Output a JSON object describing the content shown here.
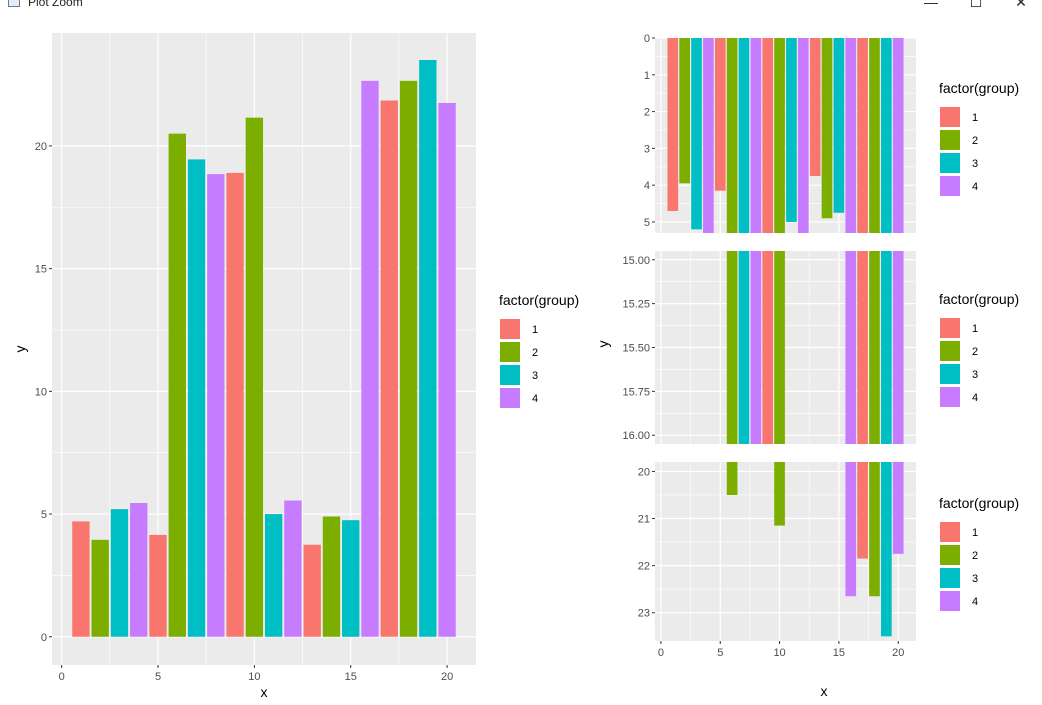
{
  "window": {
    "title": "Plot Zoom",
    "controls": [
      "minimize",
      "maximize",
      "close"
    ]
  },
  "palette": {
    "1": "#F8766D",
    "2": "#7CAE00",
    "3": "#00BFC4",
    "4": "#C77CFF"
  },
  "legend": {
    "title": "factor(group)",
    "entries": [
      "1",
      "2",
      "3",
      "4"
    ]
  },
  "chart_data": [
    {
      "type": "bar",
      "panel": "main",
      "title": "",
      "xlabel": "x",
      "ylabel": "y",
      "x": [
        1,
        2,
        3,
        4,
        5,
        6,
        7,
        8,
        9,
        10,
        11,
        12,
        13,
        14,
        15,
        16,
        17,
        18,
        19,
        20
      ],
      "values": [
        4.7,
        3.95,
        5.2,
        5.45,
        4.15,
        20.5,
        19.45,
        18.85,
        18.9,
        21.15,
        5.0,
        5.55,
        3.75,
        4.9,
        4.75,
        22.65,
        21.85,
        22.65,
        23.5,
        21.75
      ],
      "group": [
        1,
        2,
        3,
        4,
        1,
        2,
        3,
        4,
        1,
        2,
        3,
        4,
        1,
        2,
        3,
        4,
        1,
        2,
        3,
        4
      ],
      "xlim": [
        -0.5,
        21.5
      ],
      "ylim": [
        -1.15,
        24.6
      ],
      "xticks": [
        0,
        5,
        10,
        15,
        20
      ],
      "yticks": [
        0,
        5,
        10,
        15,
        20
      ],
      "yticklabels": [
        "0",
        "5",
        "10",
        "15",
        "20"
      ],
      "grid": true
    },
    {
      "type": "bar",
      "panel": "facet-top",
      "reversed_y": true,
      "ylim": [
        0,
        5.3
      ],
      "yticks": [
        0,
        1,
        2,
        3,
        4,
        5
      ],
      "yticklabels": [
        "0",
        "1",
        "2",
        "3",
        "4",
        "5"
      ]
    },
    {
      "type": "bar",
      "panel": "facet-middle",
      "reversed_y": true,
      "ylim": [
        14.95,
        16.05
      ],
      "yticks": [
        15,
        15.25,
        15.5,
        15.75,
        16
      ],
      "yticklabels": [
        "15.00",
        "15.25",
        "15.50",
        "15.75",
        "16.00"
      ],
      "ylabel": "y"
    },
    {
      "type": "bar",
      "panel": "facet-bottom",
      "reversed_y": true,
      "ylim": [
        19.8,
        23.6
      ],
      "yticks": [
        20,
        21,
        22,
        23
      ],
      "yticklabels": [
        "20",
        "21",
        "22",
        "23"
      ],
      "xlabel": "x",
      "xticks": [
        0,
        5,
        10,
        15,
        20
      ],
      "xticklabels": [
        "0",
        "5",
        "10",
        "15",
        "20"
      ]
    }
  ]
}
